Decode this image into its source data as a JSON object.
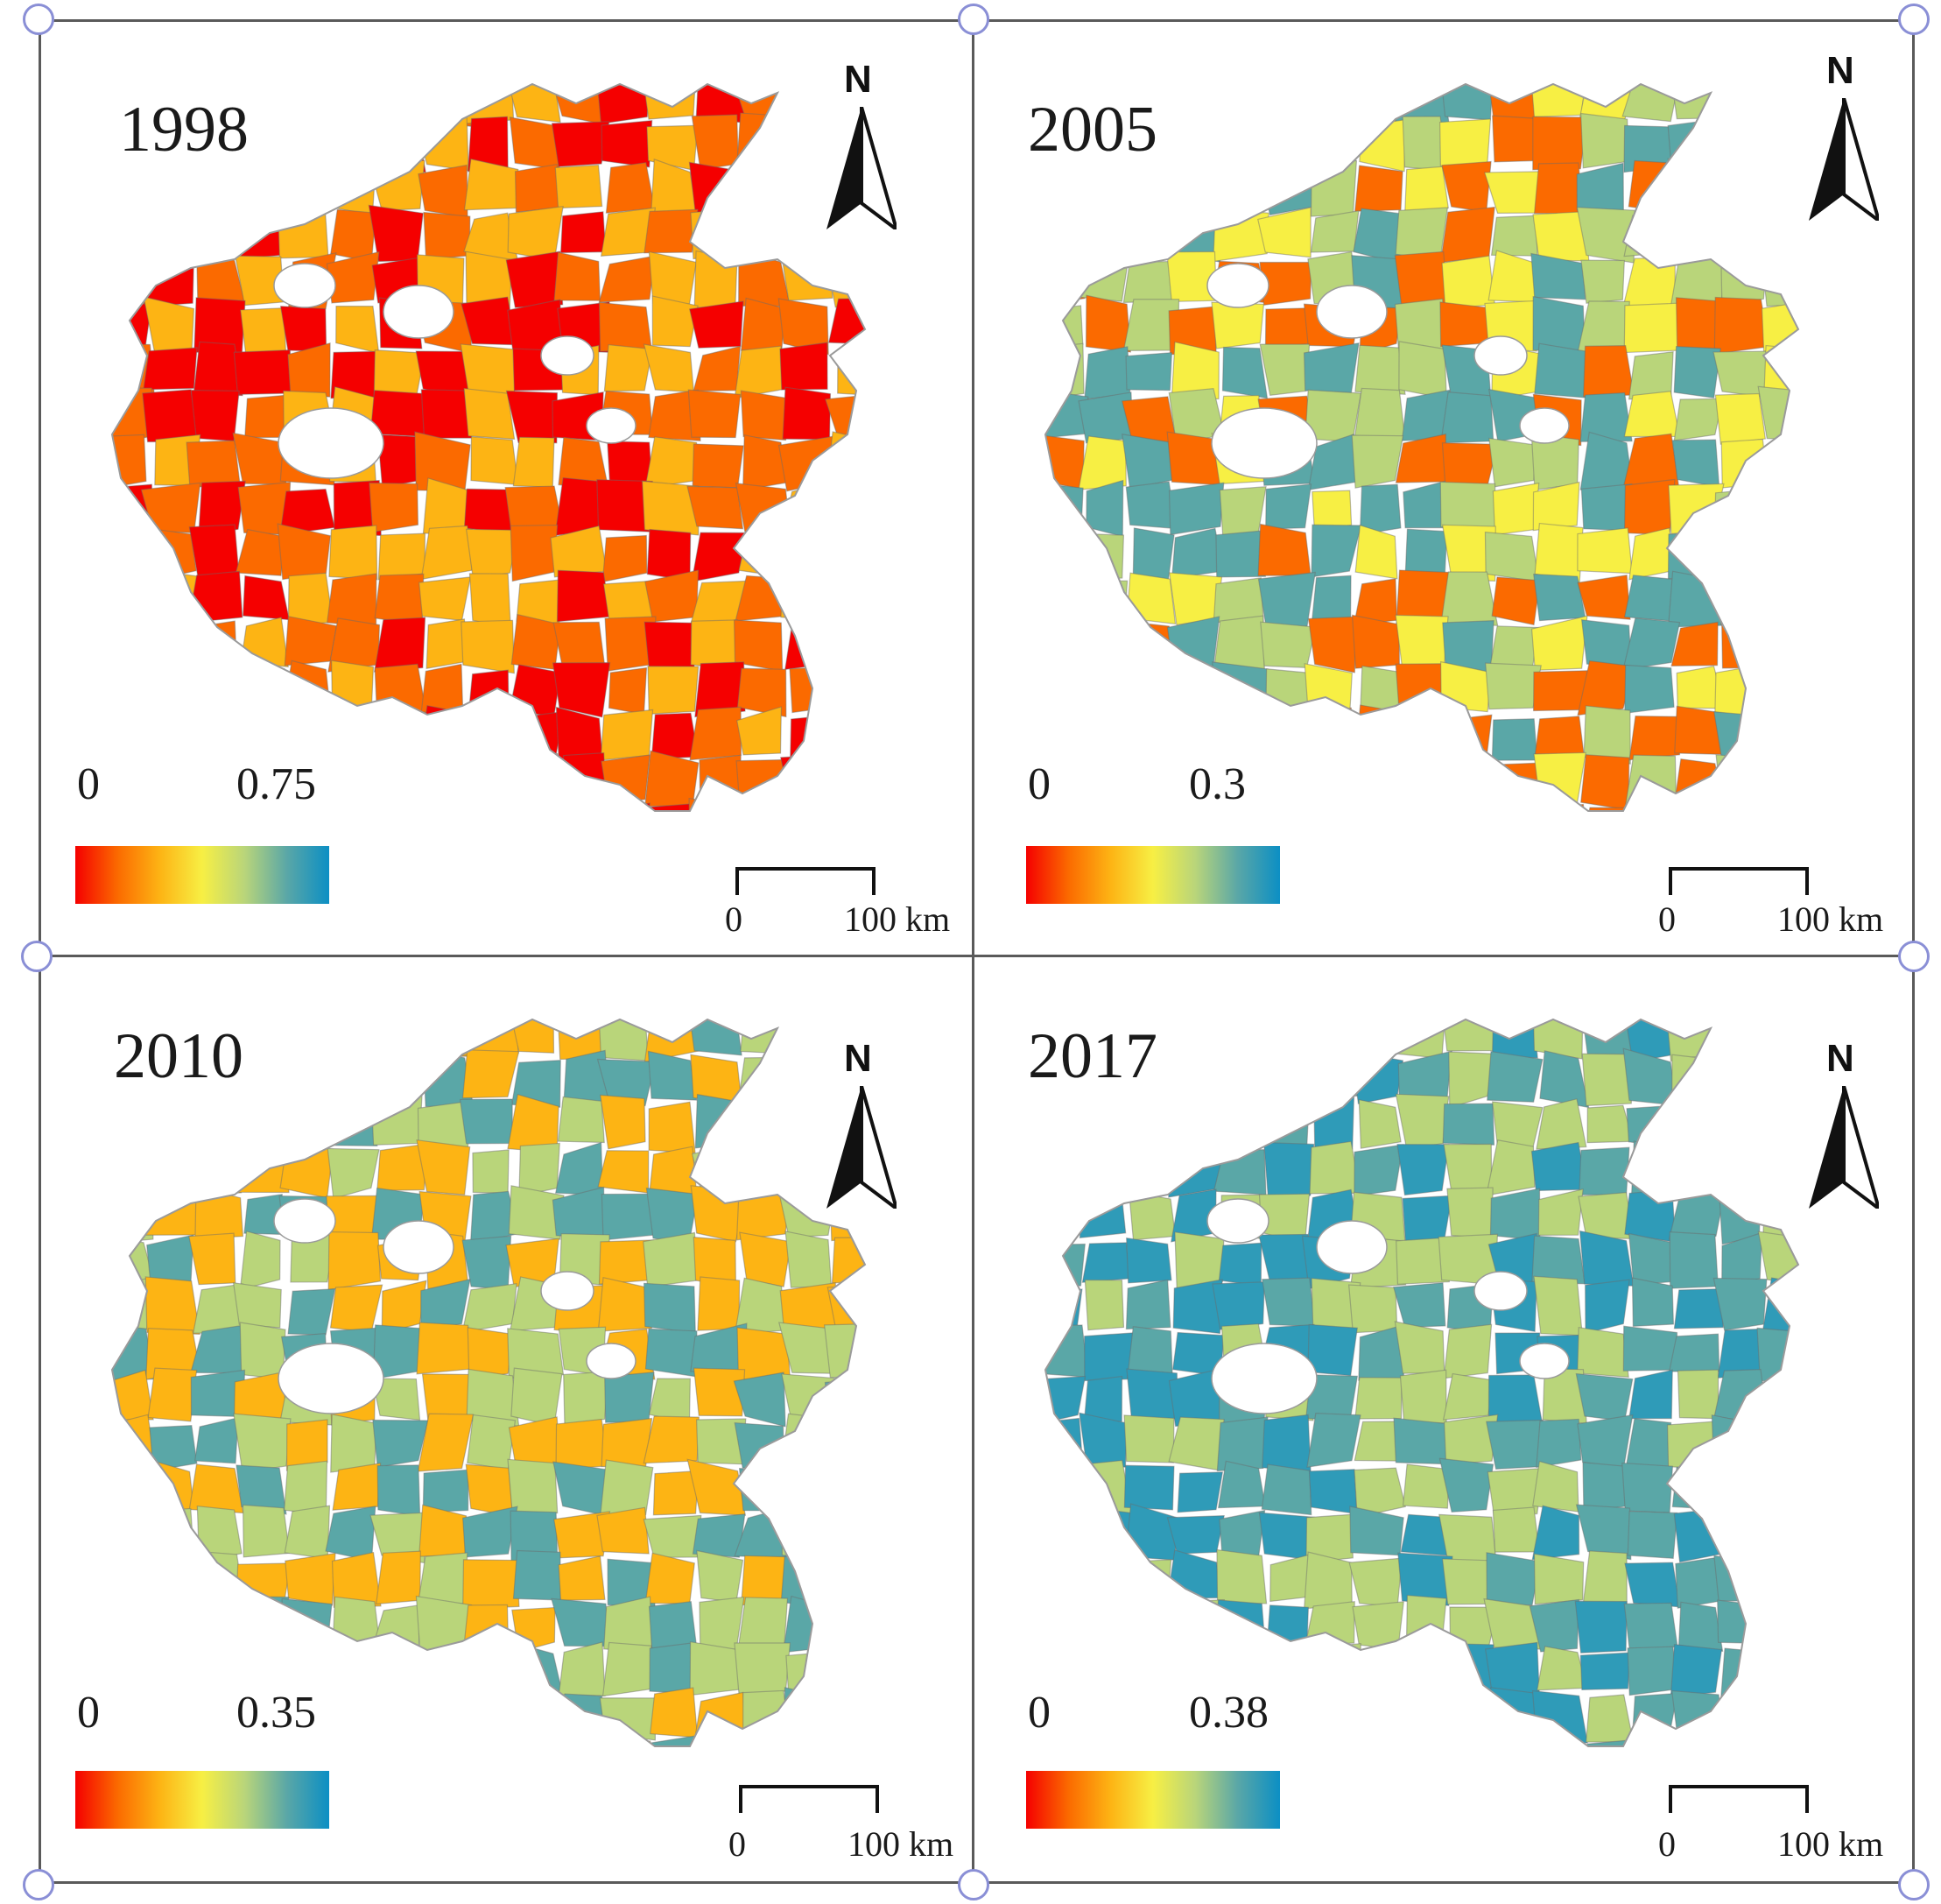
{
  "colors": {
    "ramp": [
      "#f50000",
      "#fb6a00",
      "#fdb414",
      "#f7ef44",
      "#b9d57a",
      "#5aa7a7",
      "#0c8fc4"
    ],
    "frame": "#5a5a5a",
    "handle": "#8a8fd6",
    "boundary": "#9a9a9a"
  },
  "panels": [
    {
      "year": "1998",
      "legend": {
        "min": "0",
        "max": "0.75"
      },
      "north": "N",
      "scale": {
        "zero": "0",
        "max": "100 km"
      },
      "dominant_colors": [
        "#f50000",
        "#fb6a00",
        "#fdb414"
      ]
    },
    {
      "year": "2005",
      "legend": {
        "min": "0",
        "max": "0.3"
      },
      "north": "N",
      "scale": {
        "zero": "0",
        "max": "100 km"
      },
      "dominant_colors": [
        "#fb6a00",
        "#f7ef44",
        "#b9d57a",
        "#5aa7a7"
      ]
    },
    {
      "year": "2010",
      "legend": {
        "min": "0",
        "max": "0.35"
      },
      "north": "N",
      "scale": {
        "zero": "0",
        "max": "100 km"
      },
      "dominant_colors": [
        "#5aa7a7",
        "#b9d57a",
        "#fdb414"
      ]
    },
    {
      "year": "2017",
      "legend": {
        "min": "0",
        "max": "0.38"
      },
      "north": "N",
      "scale": {
        "zero": "0",
        "max": "100 km"
      },
      "dominant_colors": [
        "#5aa7a7",
        "#2f9bb8",
        "#b9d57a"
      ]
    }
  ]
}
